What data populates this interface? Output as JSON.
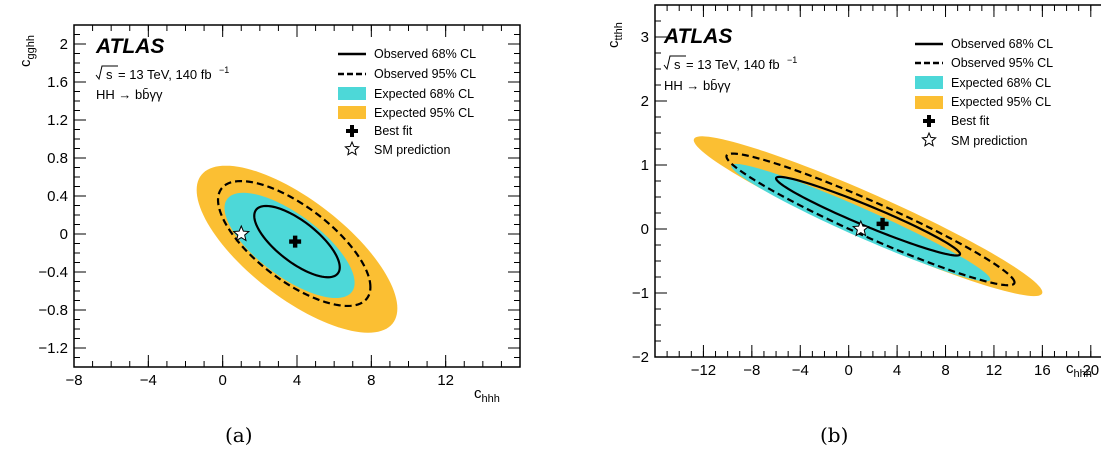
{
  "chart_data": [
    {
      "type": "contour",
      "panel_caption": "(a)",
      "experiment_label": "ATLAS",
      "energy_text": "= 13 TeV, 140 fb",
      "energy_exp": "−1",
      "energy_prefix": "s",
      "process_text": "HH → bb̄γγ",
      "xlabel_main": "c",
      "xlabel_sub": "hhh",
      "ylabel_main": "c",
      "ylabel_sub": "gghh",
      "xlim": [
        -8,
        16
      ],
      "ylim": [
        -1.4,
        2.2
      ],
      "xticks": [
        -8,
        -4,
        0,
        4,
        8,
        12
      ],
      "yticks": [
        -1.2,
        -0.8,
        -0.4,
        0,
        0.4,
        0.8,
        1.2,
        1.6,
        2
      ],
      "ytick_labels": [
        "−1.2",
        "−0.8",
        "−0.4",
        "0",
        "0.4",
        "0.8",
        "1.2",
        "1.6",
        "2"
      ],
      "xtick_labels": [
        "−8",
        "−4",
        "0",
        "4",
        "8",
        "12"
      ],
      "legend": [
        {
          "label": "Observed 68% CL",
          "style": "solid"
        },
        {
          "label": "Observed 95% CL",
          "style": "dashed"
        },
        {
          "label": "Expected 68% CL",
          "style": "fill-cyan"
        },
        {
          "label": "Expected 95% CL",
          "style": "fill-orange"
        },
        {
          "label": "Best fit",
          "style": "cross"
        },
        {
          "label": "SM prediction",
          "style": "star"
        }
      ],
      "best_fit": [
        3.9,
        -0.08
      ],
      "sm_prediction": [
        1.0,
        0.0
      ],
      "contours": {
        "expected_95": {
          "center": [
            4.0,
            -0.16
          ],
          "extreme_x": [
            -5.4,
            0.4
          ],
          "extreme_y": [
            0.76,
            0.62
          ]
        },
        "expected_68": {
          "center": [
            3.6,
            -0.12
          ],
          "extreme_x": [
            -3.5,
            0.32
          ],
          "extreme_y": [
            0.48,
            0.39
          ]
        },
        "observed_95": {
          "center": [
            3.85,
            -0.1
          ],
          "extreme_x": [
            -4.1,
            0.36
          ],
          "extreme_y": [
            0.56,
            0.47
          ]
        },
        "observed_68": {
          "center": [
            4.0,
            -0.08
          ],
          "extreme_x": [
            -2.3,
            0.26
          ],
          "extreme_y": [
            0.33,
            0.26
          ]
        }
      }
    },
    {
      "type": "contour",
      "panel_caption": "(b)",
      "experiment_label": "ATLAS",
      "energy_text": "= 13 TeV, 140 fb",
      "energy_exp": "−1",
      "energy_prefix": "s",
      "process_text": "HH → bb̄γγ",
      "xlabel_main": "c",
      "xlabel_sub": "hhh",
      "ylabel_main": "c",
      "ylabel_sub": "tthh",
      "xlim": [
        -16,
        22
      ],
      "ylim": [
        -2,
        3.5
      ],
      "xticks": [
        -12,
        -8,
        -4,
        0,
        4,
        8,
        12,
        16,
        20
      ],
      "yticks": [
        -2,
        -1,
        0,
        1,
        2,
        3
      ],
      "ytick_labels": [
        "−2",
        "−1",
        "0",
        "1",
        "2",
        "3"
      ],
      "xtick_labels": [
        "−12",
        "−8",
        "−4",
        "0",
        "4",
        "8",
        "12",
        "16",
        "20"
      ],
      "legend": [
        {
          "label": "Observed 68% CL",
          "style": "solid"
        },
        {
          "label": "Observed 95% CL",
          "style": "dashed"
        },
        {
          "label": "Expected 68% CL",
          "style": "fill-cyan"
        },
        {
          "label": "Expected 95% CL",
          "style": "fill-orange"
        },
        {
          "label": "Best fit",
          "style": "cross"
        },
        {
          "label": "SM prediction",
          "style": "star"
        }
      ],
      "best_fit": [
        2.8,
        0.08
      ],
      "sm_prediction": [
        1.0,
        0.0
      ],
      "contours": {
        "expected_95": {
          "center": [
            1.6,
            0.2
          ],
          "extreme_x": [
            -14.4,
            1.15
          ],
          "extreme_y": [
            1.45,
            0.38
          ]
        },
        "expected_68": {
          "center": [
            1.0,
            0.1
          ],
          "extreme_x": [
            -10.7,
            0.85
          ],
          "extreme_y": [
            1.08,
            0.24
          ]
        },
        "observed_95": {
          "center": [
            1.8,
            0.15
          ],
          "extreme_x": [
            -11.9,
            0.96
          ],
          "extreme_y": [
            1.2,
            0.3
          ]
        },
        "observed_68": {
          "center": [
            1.6,
            0.2
          ],
          "extreme_x": [
            -7.6,
            0.67
          ],
          "extreme_y": [
            0.72,
            0.17
          ]
        }
      }
    }
  ],
  "colors": {
    "expected_95_fill": "#fbbf33",
    "expected_68_fill": "#4dd8d8",
    "observed_line": "#000000"
  }
}
